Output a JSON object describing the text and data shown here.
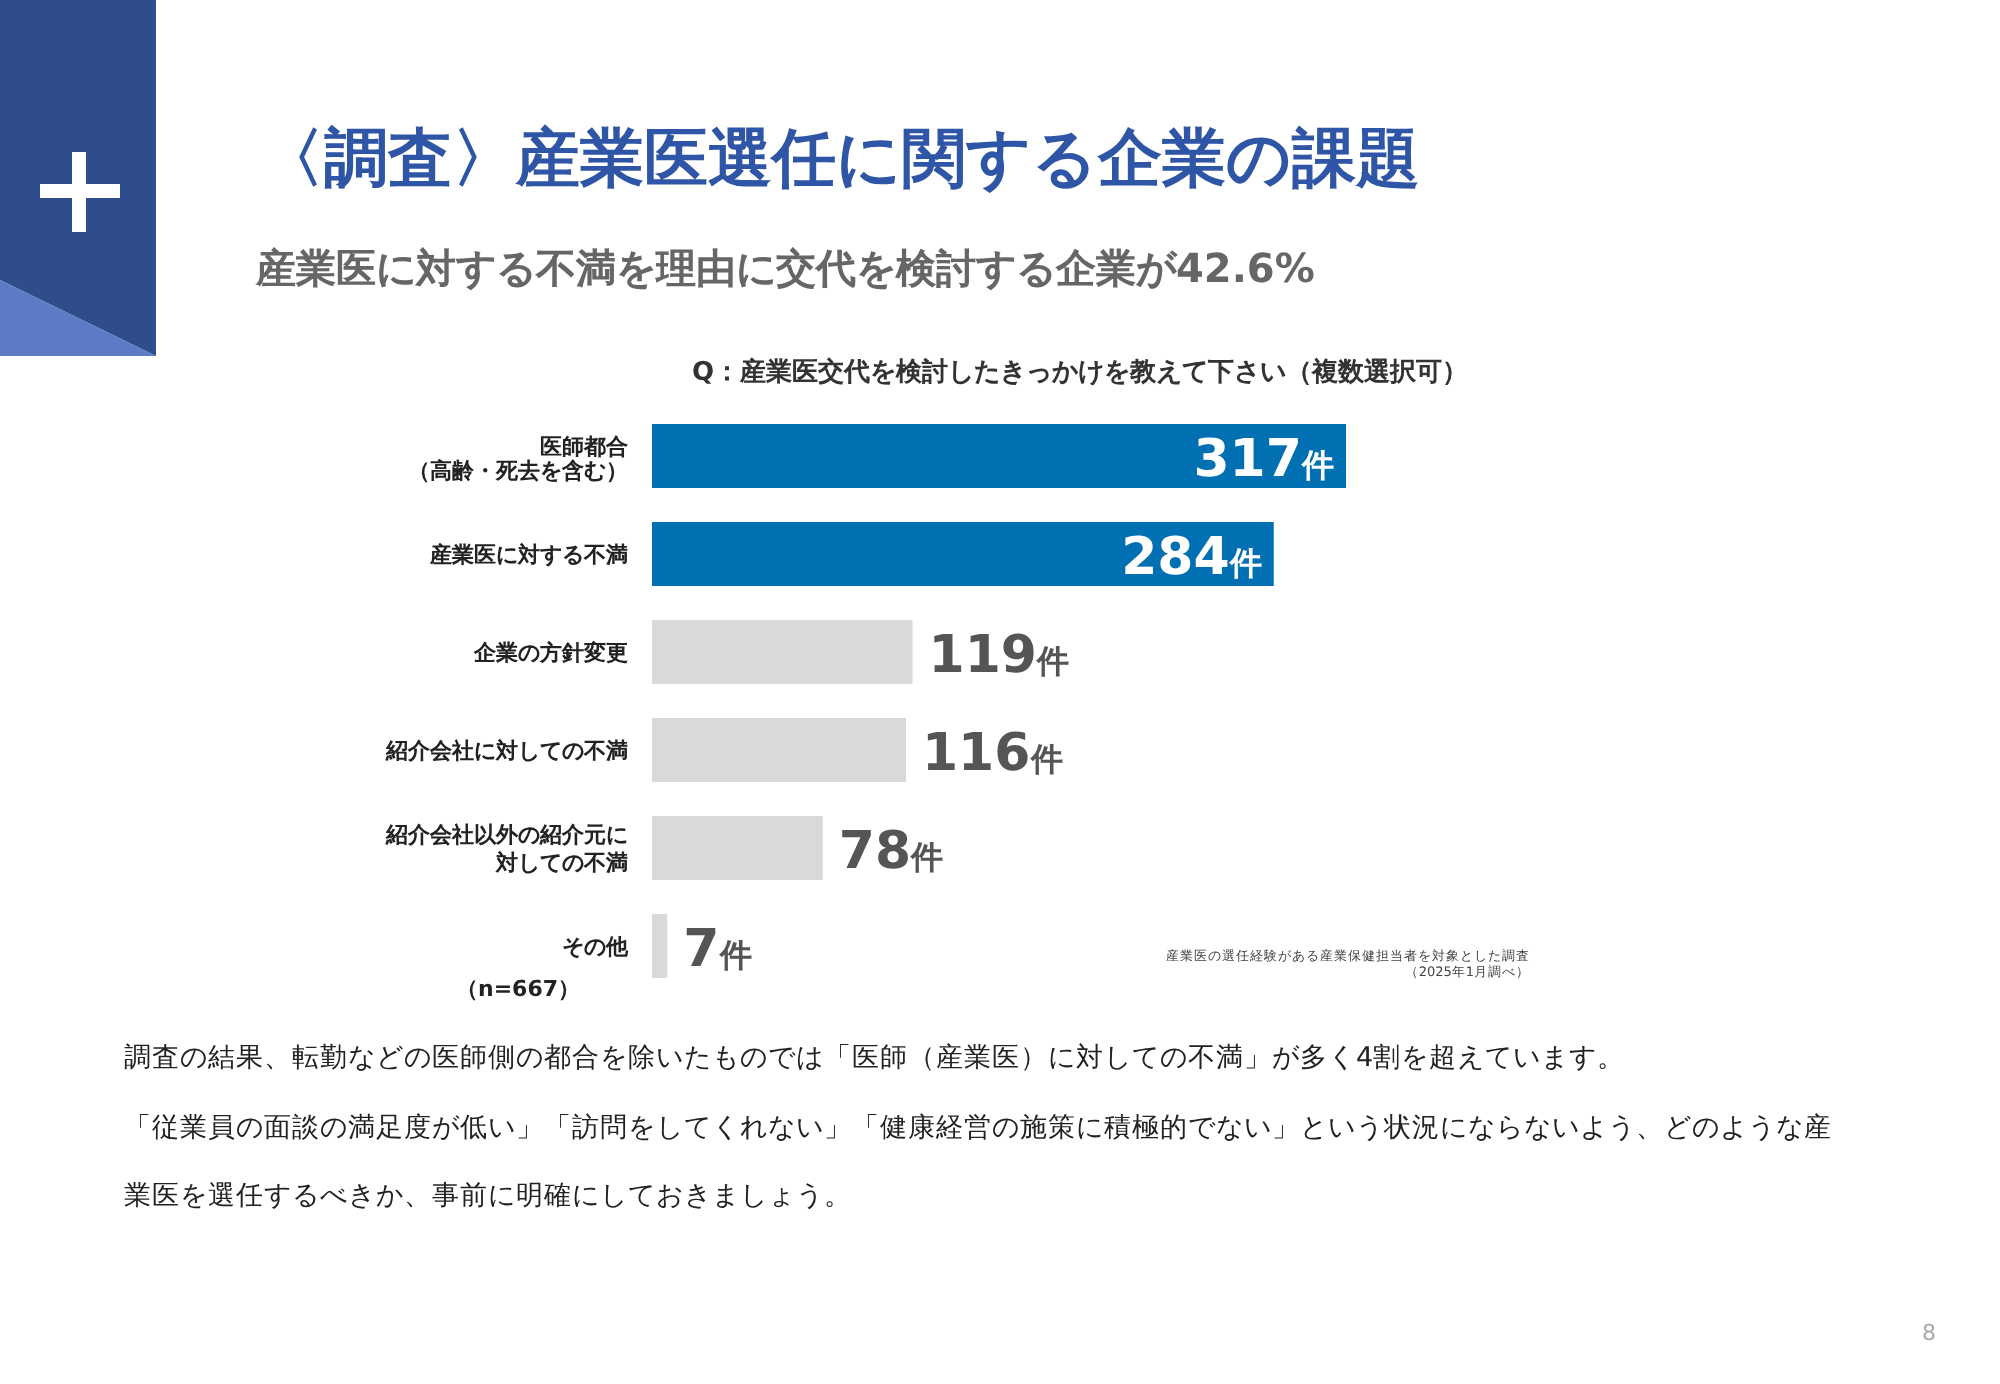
{
  "chart_data": {
    "type": "bar",
    "orientation": "horizontal",
    "title": "〈調査〉産業医選任に関する企業の課題",
    "subtitle": "産業医に対する不満を理由に交代を検討する企業が42.6%",
    "categories": [
      "医師都合（高齢・死去を含む）",
      "産業医に対する不満",
      "企業の方針変更",
      "紹介会社に対しての不満",
      "紹介会社以外の紹介元に対しての不満",
      "その他"
    ],
    "values": [
      317,
      284,
      119,
      116,
      78,
      7
    ],
    "colors": [
      "#0070b3",
      "#0070b3",
      "#d9d9d9",
      "#d9d9d9",
      "#d9d9d9",
      "#d9d9d9"
    ],
    "value_labels": [
      "317件",
      "284件",
      "119件",
      "116件",
      "78件",
      "7件"
    ],
    "annotations": [
      "Q：産業医交代を検討したきっかけを教えて下さい（複数選択可）",
      "（n=667）",
      "産業医の選任経験がある産業保健担当者を対象とした調査（2025年1月調べ）",
      "調査の結果、転勤などの医師側の都合を除いたものでは「医師（産業医）に対しての不満」が多く4割を超えています。",
      "「従業員の面談の満足度が低い」「訪問をしてくれない」「健康経営の施策に積極的でない」という状況にならないよう、どのような産業医を選任するべきか、事前に明確にしておきましょう。",
      "8"
    ]
  }
}
